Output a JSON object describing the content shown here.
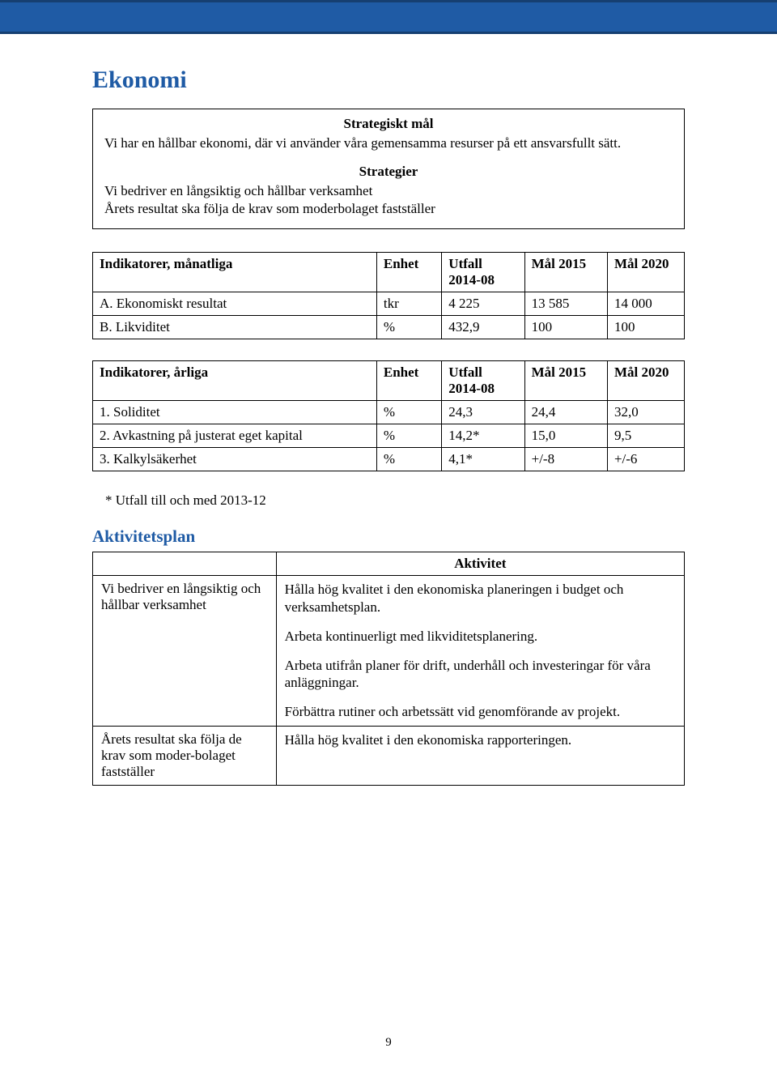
{
  "colors": {
    "brand_blue": "#1f5ba5",
    "band_border": "#163f71",
    "text": "#000000",
    "bg": "#ffffff"
  },
  "title": "Ekonomi",
  "box": {
    "heading1": "Strategiskt mål",
    "text1": "Vi har en hållbar ekonomi, där vi använder våra gemensamma resurser på ett ansvarsfullt sätt.",
    "heading2": "Strategier",
    "text2a": "Vi bedriver en långsiktig och hållbar verksamhet",
    "text2b": "Årets resultat ska följa de krav som moderbolaget fastställer"
  },
  "table1": {
    "headers": {
      "ind": "Indikatorer, månatliga",
      "enh": "Enhet",
      "utf_l1": "Utfall",
      "utf_l2": "2014-08",
      "m15": "Mål 2015",
      "m20": "Mål 2020"
    },
    "rows": [
      {
        "label": "A. Ekonomiskt resultat",
        "enh": "tkr",
        "utf": "4 225",
        "m15": "13 585",
        "m20": "14 000"
      },
      {
        "label": "B. Likviditet",
        "enh": "%",
        "utf": "432,9",
        "m15": "100",
        "m20": "100"
      }
    ]
  },
  "table2": {
    "headers": {
      "ind": "Indikatorer, årliga",
      "enh": "Enhet",
      "utf_l1": "Utfall",
      "utf_l2": "2014-08",
      "m15": "Mål 2015",
      "m20": "Mål 2020"
    },
    "rows": [
      {
        "label": "1. Soliditet",
        "enh": "%",
        "utf": "24,3",
        "m15": "24,4",
        "m20": "32,0"
      },
      {
        "label": "2. Avkastning på justerat eget kapital",
        "enh": "%",
        "utf": "14,2*",
        "m15": "15,0",
        "m20": "9,5"
      },
      {
        "label": "3. Kalkylsäkerhet",
        "enh": "%",
        "utf": "4,1*",
        "m15": "+/-8",
        "m20": "+/-6"
      }
    ]
  },
  "footnote": "*    Utfall till och med 2013-12",
  "aktivitetsplan": {
    "title": "Aktivitetsplan",
    "header_right": "Aktivitet",
    "row1_left": "Vi bedriver en långsiktig och hållbar verksamhet",
    "row1_p1": "Hålla hög kvalitet i den ekonomiska planeringen i budget och verksamhetsplan.",
    "row1_p2": "Arbeta kontinuerligt med likviditetsplanering.",
    "row1_p3": "Arbeta utifrån planer för drift, underhåll och investeringar för våra anläggningar.",
    "row1_p4": "Förbättra rutiner och arbetssätt vid genomförande av projekt.",
    "row2_left": "Årets resultat ska följa de krav som moder-bolaget fastställer",
    "row2_p1": "Hålla hög kvalitet i den ekonomiska rapporteringen."
  },
  "page_number": "9"
}
